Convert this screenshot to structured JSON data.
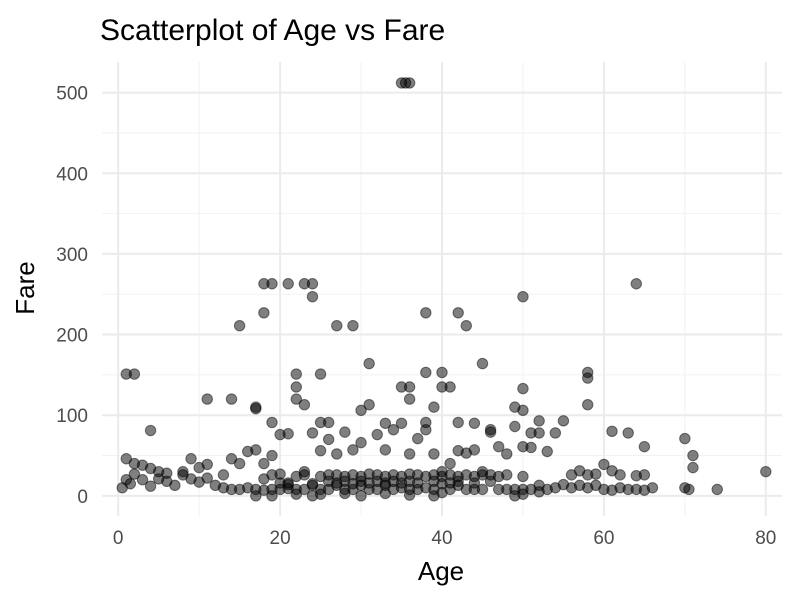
{
  "chart_data": {
    "type": "scatter",
    "title": "Scatterplot of Age vs Fare",
    "xlabel": "Age",
    "ylabel": "Fare",
    "xlim": [
      -2,
      82
    ],
    "ylim": [
      -25,
      538
    ],
    "x_ticks": [
      0,
      20,
      40,
      60,
      80
    ],
    "x_tick_labels": [
      "0",
      "20",
      "40",
      "60",
      "80"
    ],
    "y_ticks": [
      0,
      100,
      200,
      300,
      400,
      500
    ],
    "y_tick_labels": [
      "0",
      "100",
      "200",
      "300",
      "400",
      "500"
    ],
    "grid": true,
    "legend": "none",
    "point_color": "#000000",
    "point_opacity": 0.5,
    "points": [
      [
        35,
        512
      ],
      [
        36,
        512
      ],
      [
        35.5,
        512
      ],
      [
        18,
        263
      ],
      [
        19,
        263
      ],
      [
        21,
        263
      ],
      [
        23,
        263
      ],
      [
        24,
        263
      ],
      [
        24,
        247
      ],
      [
        64,
        263
      ],
      [
        15,
        211
      ],
      [
        18,
        227
      ],
      [
        27,
        211
      ],
      [
        29,
        211
      ],
      [
        38,
        227
      ],
      [
        42,
        227
      ],
      [
        43,
        211
      ],
      [
        50,
        247
      ],
      [
        1,
        151
      ],
      [
        2,
        151
      ],
      [
        22,
        151
      ],
      [
        25,
        151
      ],
      [
        31,
        164
      ],
      [
        35,
        135
      ],
      [
        36,
        135
      ],
      [
        38,
        153
      ],
      [
        40,
        153
      ],
      [
        40,
        135
      ],
      [
        41,
        135
      ],
      [
        45,
        164
      ],
      [
        50,
        133
      ],
      [
        58,
        153
      ],
      [
        58,
        146
      ],
      [
        22,
        135
      ],
      [
        22,
        120
      ],
      [
        11,
        120
      ],
      [
        14,
        120
      ],
      [
        17,
        110
      ],
      [
        17,
        108
      ],
      [
        19,
        91
      ],
      [
        23,
        113
      ],
      [
        25,
        91
      ],
      [
        26,
        91
      ],
      [
        30,
        106
      ],
      [
        31,
        113
      ],
      [
        33,
        90
      ],
      [
        35,
        90
      ],
      [
        36,
        120
      ],
      [
        38,
        91
      ],
      [
        39,
        110
      ],
      [
        42,
        91
      ],
      [
        44,
        90
      ],
      [
        46,
        82
      ],
      [
        49,
        110
      ],
      [
        50,
        106
      ],
      [
        51,
        78
      ],
      [
        52,
        93
      ],
      [
        55,
        93
      ],
      [
        58,
        113
      ],
      [
        61,
        80
      ],
      [
        63,
        78
      ],
      [
        65,
        61
      ],
      [
        70,
        71
      ],
      [
        71,
        50
      ],
      [
        71,
        35
      ],
      [
        4,
        81
      ],
      [
        1,
        46
      ],
      [
        2,
        40
      ],
      [
        3,
        38
      ],
      [
        4,
        34
      ],
      [
        5,
        30
      ],
      [
        6,
        28
      ],
      [
        8,
        30
      ],
      [
        9,
        46
      ],
      [
        10,
        35
      ],
      [
        11,
        39
      ],
      [
        13,
        26
      ],
      [
        14,
        46
      ],
      [
        15,
        40
      ],
      [
        16,
        55
      ],
      [
        17,
        57
      ],
      [
        18,
        40
      ],
      [
        19,
        50
      ],
      [
        20,
        76
      ],
      [
        21,
        77
      ],
      [
        23,
        30
      ],
      [
        24,
        78
      ],
      [
        25,
        56
      ],
      [
        26,
        70
      ],
      [
        27,
        52
      ],
      [
        28,
        79
      ],
      [
        29,
        57
      ],
      [
        30,
        66
      ],
      [
        32,
        76
      ],
      [
        33,
        57
      ],
      [
        34,
        82
      ],
      [
        36,
        52
      ],
      [
        37,
        71
      ],
      [
        38,
        82
      ],
      [
        39,
        52
      ],
      [
        40,
        30
      ],
      [
        41,
        40
      ],
      [
        42,
        56
      ],
      [
        43,
        53
      ],
      [
        44,
        57
      ],
      [
        45,
        30
      ],
      [
        46,
        79
      ],
      [
        47,
        61
      ],
      [
        48,
        52
      ],
      [
        49,
        86
      ],
      [
        50,
        61
      ],
      [
        51,
        60
      ],
      [
        52,
        78
      ],
      [
        53,
        55
      ],
      [
        54,
        78
      ],
      [
        56,
        26
      ],
      [
        57,
        31
      ],
      [
        58,
        26
      ],
      [
        59,
        27
      ],
      [
        60,
        39
      ],
      [
        61,
        31
      ],
      [
        62,
        26
      ],
      [
        64,
        25
      ],
      [
        65,
        26
      ],
      [
        66,
        10
      ],
      [
        70,
        10
      ],
      [
        0.5,
        10
      ],
      [
        1,
        20
      ],
      [
        1.5,
        15
      ],
      [
        2,
        27
      ],
      [
        3,
        20
      ],
      [
        4,
        12
      ],
      [
        5,
        21
      ],
      [
        6,
        18
      ],
      [
        7,
        13
      ],
      [
        8,
        26
      ],
      [
        9,
        21
      ],
      [
        10,
        17
      ],
      [
        11,
        22
      ],
      [
        12,
        13
      ],
      [
        13,
        10
      ],
      [
        14,
        8
      ],
      [
        15,
        8
      ],
      [
        16,
        10
      ],
      [
        17,
        8
      ],
      [
        18,
        7
      ],
      [
        19,
        8
      ],
      [
        20,
        8
      ],
      [
        21,
        9
      ],
      [
        22,
        8
      ],
      [
        23,
        8
      ],
      [
        24,
        13
      ],
      [
        25,
        8
      ],
      [
        26,
        8
      ],
      [
        27,
        13
      ],
      [
        28,
        8
      ],
      [
        29,
        8
      ],
      [
        30,
        13
      ],
      [
        31,
        8
      ],
      [
        32,
        8
      ],
      [
        33,
        13
      ],
      [
        34,
        8
      ],
      [
        35,
        10
      ],
      [
        36,
        8
      ],
      [
        37,
        8
      ],
      [
        38,
        10
      ],
      [
        39,
        8
      ],
      [
        40,
        15
      ],
      [
        41,
        8
      ],
      [
        42,
        13
      ],
      [
        43,
        8
      ],
      [
        44,
        8
      ],
      [
        45,
        8
      ],
      [
        46,
        26
      ],
      [
        47,
        8
      ],
      [
        48,
        8
      ],
      [
        49,
        8
      ],
      [
        50,
        8
      ],
      [
        51,
        8
      ],
      [
        52,
        13
      ],
      [
        53,
        8
      ],
      [
        54,
        10
      ],
      [
        55,
        14
      ],
      [
        56,
        10
      ],
      [
        57,
        13
      ],
      [
        58,
        10
      ],
      [
        59,
        13
      ],
      [
        60,
        8
      ],
      [
        61,
        7
      ],
      [
        62,
        10
      ],
      [
        63,
        8
      ],
      [
        64,
        8
      ],
      [
        65,
        7
      ],
      [
        70.5,
        8
      ],
      [
        74,
        8
      ],
      [
        80,
        30
      ],
      [
        18,
        21
      ],
      [
        19,
        26
      ],
      [
        20,
        27
      ],
      [
        21,
        14
      ],
      [
        22,
        24
      ],
      [
        23,
        26
      ],
      [
        24,
        15
      ],
      [
        25,
        24
      ],
      [
        26,
        26
      ],
      [
        27,
        26
      ],
      [
        28,
        24
      ],
      [
        29,
        26
      ],
      [
        30,
        24
      ],
      [
        31,
        27
      ],
      [
        32,
        26
      ],
      [
        33,
        24
      ],
      [
        34,
        26
      ],
      [
        35,
        24
      ],
      [
        36,
        27
      ],
      [
        37,
        26
      ],
      [
        38,
        24
      ],
      [
        39,
        26
      ],
      [
        40,
        24
      ],
      [
        41,
        26
      ],
      [
        42,
        24
      ],
      [
        43,
        26
      ],
      [
        44,
        24
      ],
      [
        45,
        26
      ],
      [
        47,
        24
      ],
      [
        48,
        26
      ],
      [
        50,
        24
      ],
      [
        17,
        0
      ],
      [
        19,
        0
      ],
      [
        22,
        2
      ],
      [
        24,
        0
      ],
      [
        25,
        2
      ],
      [
        28,
        3
      ],
      [
        30,
        0
      ],
      [
        33,
        3
      ],
      [
        36,
        1
      ],
      [
        39,
        0
      ],
      [
        40,
        4
      ],
      [
        49,
        0
      ],
      [
        50,
        2
      ],
      [
        52,
        5
      ],
      [
        20,
        16
      ],
      [
        21,
        16
      ],
      [
        26,
        18
      ],
      [
        27,
        16
      ],
      [
        28,
        18
      ],
      [
        29,
        15
      ],
      [
        30,
        18
      ],
      [
        31,
        16
      ],
      [
        32,
        18
      ],
      [
        33,
        16
      ],
      [
        34,
        18
      ],
      [
        35,
        16
      ],
      [
        36,
        18
      ],
      [
        37,
        16
      ],
      [
        39,
        18
      ],
      [
        41,
        16
      ],
      [
        42,
        18
      ],
      [
        44,
        16
      ],
      [
        46,
        18
      ]
    ]
  }
}
